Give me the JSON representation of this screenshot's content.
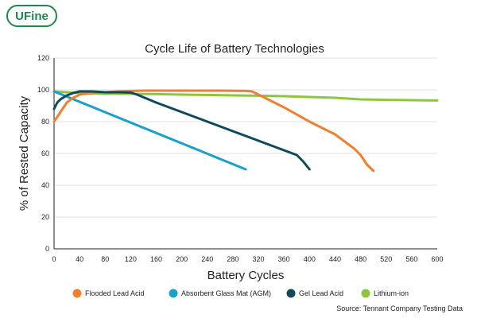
{
  "brand": {
    "logo_text": "UFine"
  },
  "chart_data": {
    "type": "line",
    "title": "Cycle Life of Battery Technologies",
    "xlabel": "Battery Cycles",
    "ylabel": "% of Rested Capacity",
    "xlim": [
      0,
      600
    ],
    "ylim": [
      0,
      120
    ],
    "xticks": [
      0,
      40,
      80,
      120,
      160,
      200,
      240,
      280,
      320,
      360,
      400,
      440,
      480,
      520,
      560,
      600
    ],
    "yticks": [
      0,
      20,
      40,
      60,
      80,
      100,
      120
    ],
    "grid": true,
    "legend_position": "bottom",
    "source": "Source: Tennant Company Testing Data",
    "series": [
      {
        "name": "Flooded Lead Acid",
        "color": "#f07f2e",
        "x": [
          0,
          10,
          20,
          30,
          40,
          60,
          80,
          100,
          140,
          200,
          260,
          300,
          310,
          320,
          360,
          400,
          440,
          470,
          480,
          490,
          500
        ],
        "y": [
          80,
          86,
          92,
          95,
          97,
          98,
          98.5,
          99,
          99.5,
          99.5,
          99.5,
          99.3,
          99,
          97,
          89,
          80,
          72,
          63,
          59,
          53,
          49
        ]
      },
      {
        "name": "Absorbent Glass Mat (AGM)",
        "color": "#1aa0cc",
        "x": [
          0,
          300
        ],
        "y": [
          99,
          50
        ]
      },
      {
        "name": "Gel Lead Acid",
        "color": "#0e4a5c",
        "x": [
          0,
          5,
          10,
          20,
          30,
          40,
          50,
          60,
          80,
          100,
          120,
          130,
          160,
          200,
          240,
          280,
          320,
          360,
          380,
          390,
          400
        ],
        "y": [
          88,
          92,
          94,
          96.5,
          98,
          99,
          99,
          99,
          98.5,
          98.5,
          98.3,
          97,
          92,
          86,
          80,
          74,
          68,
          62,
          59,
          55,
          50
        ]
      },
      {
        "name": "Lithium-ion",
        "color": "#8cc63f",
        "x": [
          0,
          40,
          80,
          120,
          160,
          200,
          240,
          280,
          320,
          360,
          400,
          440,
          480,
          520,
          560,
          600
        ],
        "y": [
          99,
          98,
          97.5,
          97.5,
          97.3,
          97,
          96.8,
          96.5,
          96.3,
          96,
          95.5,
          95,
          94,
          93.7,
          93.5,
          93.3
        ]
      }
    ]
  }
}
